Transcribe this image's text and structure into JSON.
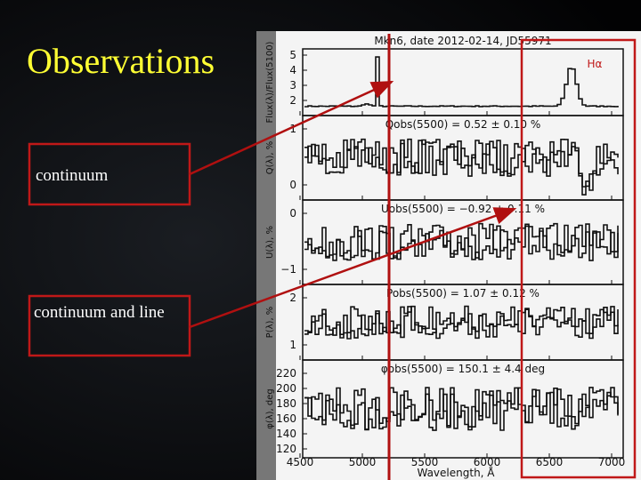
{
  "slide": {
    "title": "Observations",
    "boxes": [
      {
        "label": "continuum"
      },
      {
        "label": "continuum and line"
      }
    ],
    "figure": {
      "title": "Mkn6, date 2012-02-14, JD55971",
      "highlight": "Hα",
      "xlabel": "Wavelength, Å",
      "xticks": [
        "4500",
        "5000",
        "5500",
        "6000",
        "6500",
        "7000"
      ],
      "panels": [
        {
          "ylabel": "Flux(λ)/Flux(5100)",
          "annotation": "",
          "yticks": [
            "5",
            "4",
            "3",
            "2"
          ]
        },
        {
          "ylabel": "Q(λ), %",
          "annotation": "Qobs(5500) = 0.52 ± 0.10 %",
          "yticks": [
            "1",
            "0"
          ]
        },
        {
          "ylabel": "U(λ), %",
          "annotation": "Uobs(5500) = −0.92 ± 0.11 %",
          "yticks": [
            "0",
            "−1"
          ]
        },
        {
          "ylabel": "P(λ), %",
          "annotation": "Pobs(5500) = 1.07 ± 0.12 %",
          "yticks": [
            "2",
            "1"
          ]
        },
        {
          "ylabel": "φ(λ), deg",
          "annotation": "φobs(5500) = 150.1 ± 4.4 deg",
          "yticks": [
            "220",
            "200",
            "180",
            "160",
            "140",
            "120"
          ]
        }
      ]
    }
  }
}
